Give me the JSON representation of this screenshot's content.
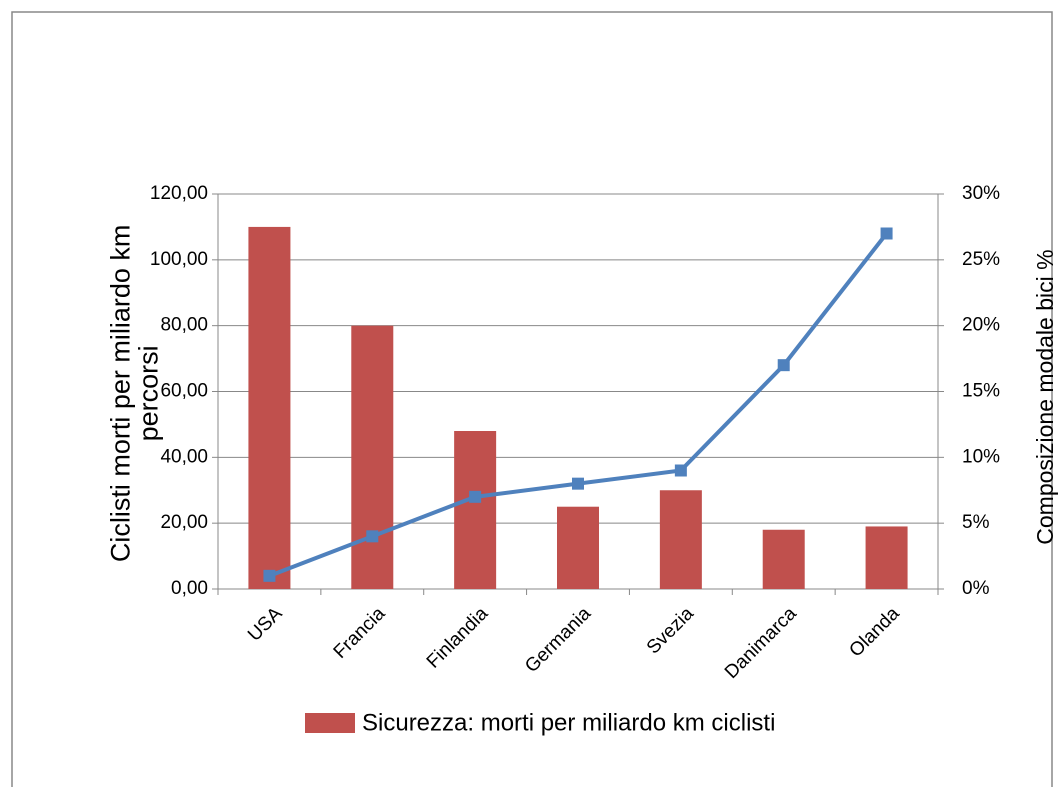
{
  "chart_data": {
    "type": "bar",
    "categories": [
      "USA",
      "Francia",
      "Finlandia",
      "Germania",
      "Svezia",
      "Danimarca",
      "Olanda"
    ],
    "series": [
      {
        "name": "Sicurezza: morti per miliardo km ciclisti",
        "type": "bar",
        "color": "#c0504d",
        "values": [
          110,
          80,
          48,
          25,
          30,
          18,
          19
        ]
      },
      {
        "type": "line",
        "axis": "y2",
        "color": "#4f81bd",
        "values": [
          1,
          4,
          7,
          8,
          9,
          17,
          27
        ]
      }
    ],
    "ylabel": "Ciclisti morti per miliardo km percorsi",
    "y2label": "Composizione modale bici %",
    "ylim": [
      0,
      120
    ],
    "yticks": [
      {
        "value": 0,
        "label": "0,00"
      },
      {
        "value": 20,
        "label": "20,00"
      },
      {
        "value": 40,
        "label": "40,00"
      },
      {
        "value": 60,
        "label": "60,00"
      },
      {
        "value": 80,
        "label": "80,00"
      },
      {
        "value": 100,
        "label": "100,00"
      },
      {
        "value": 120,
        "label": "120,00"
      }
    ],
    "y2lim": [
      0,
      30
    ],
    "y2ticks": [
      {
        "value": 0,
        "label": "0%"
      },
      {
        "value": 5,
        "label": "5%"
      },
      {
        "value": 10,
        "label": "10%"
      },
      {
        "value": 15,
        "label": "15%"
      },
      {
        "value": 20,
        "label": "20%"
      },
      {
        "value": 25,
        "label": "25%"
      },
      {
        "value": 30,
        "label": "30%"
      }
    ],
    "grid": true,
    "legend": "bottom"
  }
}
